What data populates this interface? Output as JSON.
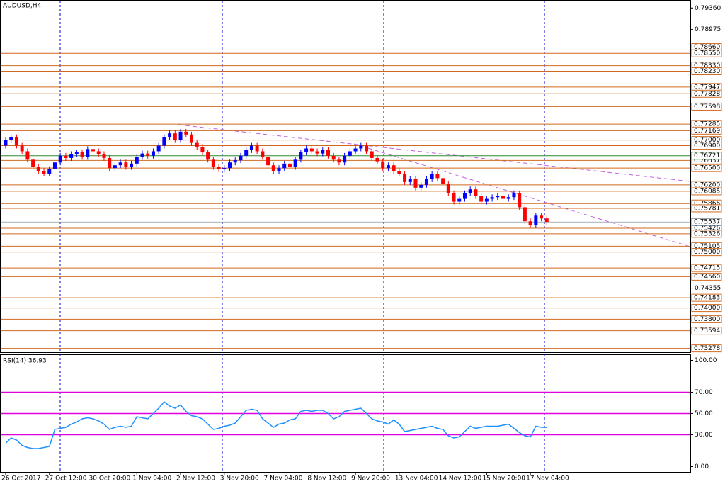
{
  "chart_data": [
    {
      "type": "candlestick",
      "title": "AUDUSD,H4",
      "open": [
        0.769,
        0.77,
        0.7705,
        0.769,
        0.768,
        0.7665,
        0.7652,
        0.7645,
        0.764,
        0.7648,
        0.766,
        0.7672,
        0.7668,
        0.7675,
        0.7678,
        0.767,
        0.7684,
        0.768,
        0.7675,
        0.7668,
        0.765,
        0.7655,
        0.766,
        0.7652,
        0.7658,
        0.767,
        0.7676,
        0.7672,
        0.768,
        0.769,
        0.7705,
        0.7712,
        0.77,
        0.7715,
        0.771,
        0.7695,
        0.7688,
        0.7678,
        0.7665,
        0.7652,
        0.7648,
        0.765,
        0.766,
        0.7664,
        0.7672,
        0.7682,
        0.769,
        0.768,
        0.767,
        0.7655,
        0.7645,
        0.765,
        0.7658,
        0.7652,
        0.7665,
        0.7678,
        0.7685,
        0.768,
        0.7676,
        0.7683,
        0.7672,
        0.7665,
        0.766,
        0.7672,
        0.768,
        0.7685,
        0.769,
        0.768,
        0.7668,
        0.7662,
        0.765,
        0.7655,
        0.7645,
        0.764,
        0.7625,
        0.763,
        0.7615,
        0.762,
        0.763,
        0.764,
        0.7632,
        0.7622,
        0.7605,
        0.759,
        0.7595,
        0.7605,
        0.7612,
        0.76,
        0.759,
        0.7595,
        0.7598,
        0.76,
        0.7595,
        0.7598,
        0.7605,
        0.758,
        0.7555,
        0.7548,
        0.7565,
        0.756
      ],
      "high": [
        0.7705,
        0.771,
        0.771,
        0.7695,
        0.7685,
        0.767,
        0.7657,
        0.765,
        0.7653,
        0.7665,
        0.7677,
        0.7677,
        0.768,
        0.7683,
        0.7683,
        0.7689,
        0.7689,
        0.7685,
        0.768,
        0.7673,
        0.766,
        0.7665,
        0.7665,
        0.7663,
        0.7675,
        0.7681,
        0.7681,
        0.7685,
        0.7695,
        0.771,
        0.7717,
        0.7717,
        0.772,
        0.772,
        0.7715,
        0.77,
        0.7693,
        0.7683,
        0.767,
        0.7657,
        0.7655,
        0.7665,
        0.7669,
        0.7677,
        0.7687,
        0.7695,
        0.7695,
        0.7685,
        0.7675,
        0.766,
        0.7655,
        0.7663,
        0.7663,
        0.767,
        0.7683,
        0.769,
        0.769,
        0.7685,
        0.7688,
        0.7688,
        0.7677,
        0.767,
        0.7677,
        0.7685,
        0.769,
        0.7695,
        0.7695,
        0.7685,
        0.7673,
        0.7667,
        0.766,
        0.766,
        0.765,
        0.7645,
        0.7635,
        0.7635,
        0.7625,
        0.7635,
        0.7645,
        0.7645,
        0.7637,
        0.7627,
        0.761,
        0.76,
        0.761,
        0.7617,
        0.7617,
        0.7605,
        0.76,
        0.7603,
        0.7605,
        0.7605,
        0.7603,
        0.761,
        0.761,
        0.7585,
        0.756,
        0.757,
        0.757,
        0.7565
      ],
      "low": [
        0.7685,
        0.7695,
        0.7685,
        0.7675,
        0.766,
        0.7647,
        0.764,
        0.7635,
        0.7635,
        0.7643,
        0.7655,
        0.7663,
        0.7663,
        0.767,
        0.7665,
        0.7665,
        0.7675,
        0.767,
        0.7663,
        0.7645,
        0.7645,
        0.765,
        0.7647,
        0.7647,
        0.7653,
        0.7665,
        0.7667,
        0.7667,
        0.7675,
        0.7685,
        0.77,
        0.7695,
        0.7695,
        0.7705,
        0.769,
        0.7683,
        0.7673,
        0.766,
        0.7647,
        0.7643,
        0.7643,
        0.7645,
        0.7655,
        0.7659,
        0.7667,
        0.7677,
        0.7675,
        0.7665,
        0.765,
        0.764,
        0.764,
        0.7645,
        0.7647,
        0.7647,
        0.766,
        0.7673,
        0.7675,
        0.7671,
        0.7671,
        0.7667,
        0.766,
        0.7655,
        0.7655,
        0.7667,
        0.7675,
        0.768,
        0.7675,
        0.7663,
        0.7657,
        0.7645,
        0.7645,
        0.764,
        0.7635,
        0.762,
        0.762,
        0.761,
        0.761,
        0.7615,
        0.7625,
        0.7627,
        0.7617,
        0.76,
        0.7585,
        0.7585,
        0.759,
        0.76,
        0.7595,
        0.7585,
        0.7585,
        0.759,
        0.7593,
        0.759,
        0.759,
        0.7593,
        0.7575,
        0.755,
        0.7543,
        0.7543,
        0.7555,
        0.7549
      ],
      "close": [
        0.77,
        0.7705,
        0.769,
        0.768,
        0.7665,
        0.7652,
        0.7645,
        0.764,
        0.7648,
        0.766,
        0.7672,
        0.7668,
        0.7675,
        0.7678,
        0.767,
        0.7684,
        0.768,
        0.7675,
        0.7668,
        0.765,
        0.7655,
        0.766,
        0.7652,
        0.7658,
        0.767,
        0.7676,
        0.7672,
        0.768,
        0.769,
        0.7705,
        0.7712,
        0.77,
        0.7715,
        0.771,
        0.7695,
        0.7688,
        0.7678,
        0.7665,
        0.7652,
        0.7648,
        0.765,
        0.766,
        0.7664,
        0.7672,
        0.7682,
        0.769,
        0.768,
        0.767,
        0.7655,
        0.7645,
        0.765,
        0.7658,
        0.7652,
        0.7665,
        0.7678,
        0.7685,
        0.768,
        0.7676,
        0.7683,
        0.7672,
        0.7665,
        0.766,
        0.7672,
        0.768,
        0.7685,
        0.769,
        0.768,
        0.7668,
        0.7662,
        0.765,
        0.7655,
        0.7645,
        0.764,
        0.7625,
        0.763,
        0.7615,
        0.762,
        0.763,
        0.764,
        0.7632,
        0.7622,
        0.7605,
        0.759,
        0.7595,
        0.7605,
        0.7612,
        0.76,
        0.759,
        0.7595,
        0.7598,
        0.76,
        0.7595,
        0.7598,
        0.7605,
        0.758,
        0.7555,
        0.7548,
        0.7565,
        0.756,
        0.7554
      ],
      "up_color": "#0000ff",
      "down_color": "#ff0000",
      "ylim": [
        0.7321,
        0.7949
      ],
      "yticks": [
        {
          "value": 0.7936,
          "label": "0.79360"
        },
        {
          "value": 0.78975,
          "label": "0.78975"
        },
        {
          "value": 0.74355,
          "label": "0.74355"
        }
      ],
      "levels": [
        {
          "value": 0.7866,
          "label": "0.78660"
        },
        {
          "value": 0.7855,
          "label": "0.78550"
        },
        {
          "value": 0.7833,
          "label": "0.78330"
        },
        {
          "value": 0.7823,
          "label": "0.78230"
        },
        {
          "value": 0.77947,
          "label": "0.77947"
        },
        {
          "value": 0.77828,
          "label": "0.77828"
        },
        {
          "value": 0.77598,
          "label": "0.77598"
        },
        {
          "value": 0.77285,
          "label": "0.77285"
        },
        {
          "value": 0.77169,
          "label": "0.77169"
        },
        {
          "value": 0.77,
          "label": "0.77000"
        },
        {
          "value": 0.769,
          "label": "0.76900"
        },
        {
          "value": 0.76637,
          "label": "0.76637"
        },
        {
          "value": 0.765,
          "label": "0.76500"
        },
        {
          "value": 0.762,
          "label": "0.76200"
        },
        {
          "value": 0.76085,
          "label": "0.76085"
        },
        {
          "value": 0.75866,
          "label": "0.75866"
        },
        {
          "value": 0.75781,
          "label": "0.75781"
        },
        {
          "value": 0.75426,
          "label": "0.75426"
        },
        {
          "value": 0.75326,
          "label": "0.75326"
        },
        {
          "value": 0.75105,
          "label": "0.75105"
        },
        {
          "value": 0.75,
          "label": "0.75000"
        },
        {
          "value": 0.74715,
          "label": "0.74715"
        },
        {
          "value": 0.7456,
          "label": "0.74560"
        },
        {
          "value": 0.74183,
          "label": "0.74183"
        },
        {
          "value": 0.74,
          "label": "0.74000"
        },
        {
          "value": 0.738,
          "label": "0.73800"
        },
        {
          "value": 0.73594,
          "label": "0.73594"
        },
        {
          "value": 0.73278,
          "label": "0.73278"
        }
      ],
      "level_color": "#d2691e",
      "support_level": {
        "value": 0.76721,
        "label": "0.76721"
      },
      "support_color": "#2e8b2e",
      "current_price": {
        "value": 0.75537,
        "label": "0.75537"
      },
      "current_color": "#708090"
    },
    {
      "type": "line",
      "title": "RSI(14) 36.93",
      "categories": [
        "26 Oct 2017",
        null,
        null,
        null,
        null,
        null,
        null,
        null,
        "27 Oct 12:00",
        null,
        null,
        null,
        null,
        null,
        null,
        null,
        "30 Oct 20:00",
        null,
        null,
        null,
        null,
        null,
        null,
        null,
        "1 Nov 04:00",
        null,
        null,
        null,
        null,
        null,
        null,
        null,
        "2 Nov 12:00",
        null,
        null,
        null,
        null,
        null,
        null,
        null,
        "3 Nov 20:00",
        null,
        null,
        null,
        null,
        null,
        null,
        null,
        "7 Nov 04:00",
        null,
        null,
        null,
        null,
        null,
        null,
        null,
        "8 Nov 12:00",
        null,
        null,
        null,
        null,
        null,
        null,
        null,
        "9 Nov 20:00",
        null,
        null,
        null,
        null,
        null,
        null,
        null,
        "13 Nov 04:00",
        null,
        null,
        null,
        null,
        null,
        null,
        null,
        "14 Nov 12:00",
        null,
        null,
        null,
        null,
        null,
        null,
        null,
        "15 Nov 20:00",
        null,
        null,
        null,
        null,
        null,
        null,
        null,
        "17 Nov 04:00",
        null,
        null,
        null
      ],
      "values": [
        22,
        27,
        25,
        20,
        18,
        17,
        17,
        18,
        19,
        35,
        36,
        37,
        40,
        42,
        45,
        46,
        45,
        43,
        40,
        35,
        37,
        38,
        37,
        38,
        47,
        46,
        45,
        50,
        55,
        61,
        57,
        55,
        58,
        52,
        48,
        47,
        45,
        40,
        35,
        36,
        38,
        39,
        41,
        47,
        53,
        54,
        53,
        45,
        41,
        37,
        40,
        41,
        44,
        45,
        52,
        53,
        52,
        53,
        53,
        50,
        45,
        47,
        52,
        53,
        54,
        55,
        50,
        45,
        43,
        42,
        40,
        44,
        40,
        33,
        34,
        35,
        36,
        37,
        38,
        36,
        35,
        29,
        27,
        28,
        33,
        38,
        36,
        37,
        38,
        38,
        38,
        39,
        40,
        36,
        32,
        29,
        28,
        38,
        37,
        36.93
      ],
      "color": "#1e90ff",
      "ylim": [
        -5,
        105
      ],
      "yticks": [
        {
          "value": 100,
          "label": "100.00"
        },
        {
          "value": 70,
          "label": "70.00"
        },
        {
          "value": 50,
          "label": "50.00"
        },
        {
          "value": 30,
          "label": "30.00"
        },
        {
          "value": 0,
          "label": "0.00"
        }
      ],
      "levels": [
        70,
        50,
        30
      ],
      "level_color": "#e000e0"
    }
  ]
}
